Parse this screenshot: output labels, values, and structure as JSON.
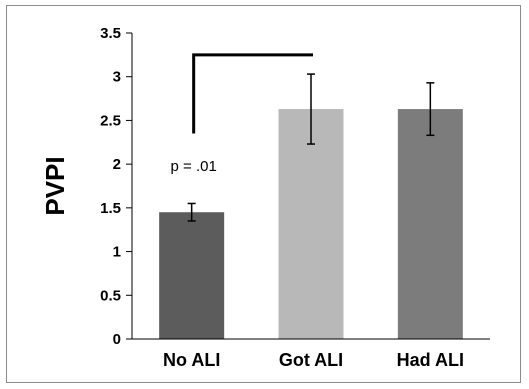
{
  "chart_data": {
    "type": "bar",
    "categories": [
      "No ALI",
      "Got ALI",
      "Had ALI"
    ],
    "values": [
      1.45,
      2.63,
      2.63
    ],
    "errors": [
      0.1,
      0.4,
      0.3
    ],
    "bar_colors": [
      "#5c5c5c",
      "#b8b8b8",
      "#7c7c7c"
    ],
    "ylabel": "PVPI",
    "ylim": [
      0,
      3.5
    ],
    "yticks": [
      "0",
      "0.5",
      "1",
      "1.5",
      "2",
      "2.5",
      "3",
      "3.5"
    ],
    "grid": false,
    "annotation": {
      "text": "p = .01",
      "bracket": [
        "No ALI",
        "Got ALI"
      ],
      "bracket_y": 3.25,
      "bracket_drop_y": 2.35
    }
  }
}
